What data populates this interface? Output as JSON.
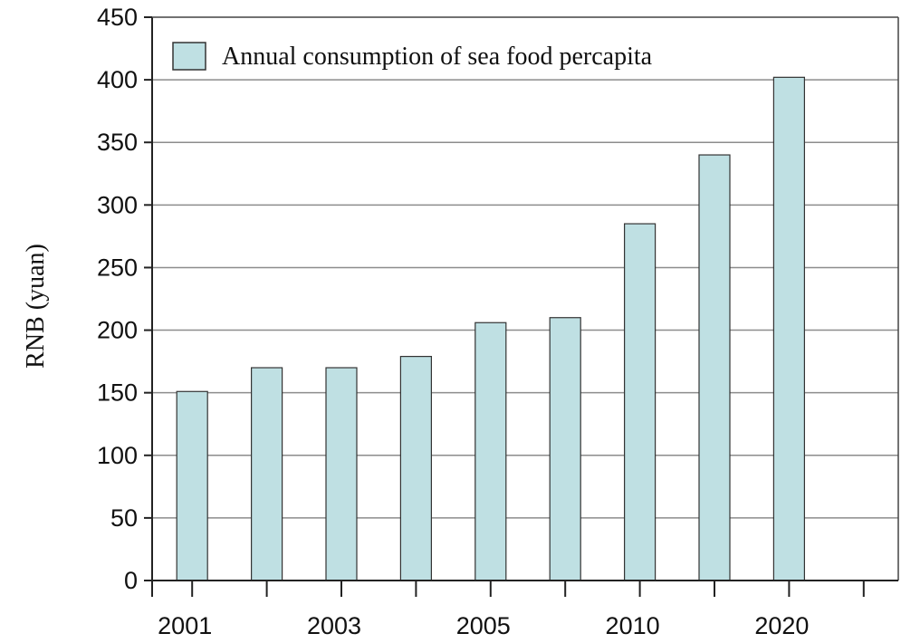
{
  "chart_data": {
    "type": "bar",
    "categories": [
      "2001",
      "",
      "2003",
      "",
      "2005",
      "",
      "2010",
      "",
      "2020"
    ],
    "series": [
      {
        "name": "Annual consumption of sea food percapita",
        "values": [
          151,
          170,
          170,
          179,
          206,
          210,
          285,
          340,
          402
        ],
        "color": "#bfe0e3"
      }
    ],
    "x_tick_labels": [
      "2001",
      "2003",
      "2005",
      "2010",
      "2020"
    ],
    "y_ticks": [
      "0",
      "50",
      "100",
      "150",
      "200",
      "250",
      "300",
      "350",
      "400",
      "450"
    ],
    "ylabel": "RNB (yuan)",
    "xlabel": "",
    "ylim": [
      0,
      450
    ],
    "grid": true,
    "legend_position": "top-left"
  }
}
